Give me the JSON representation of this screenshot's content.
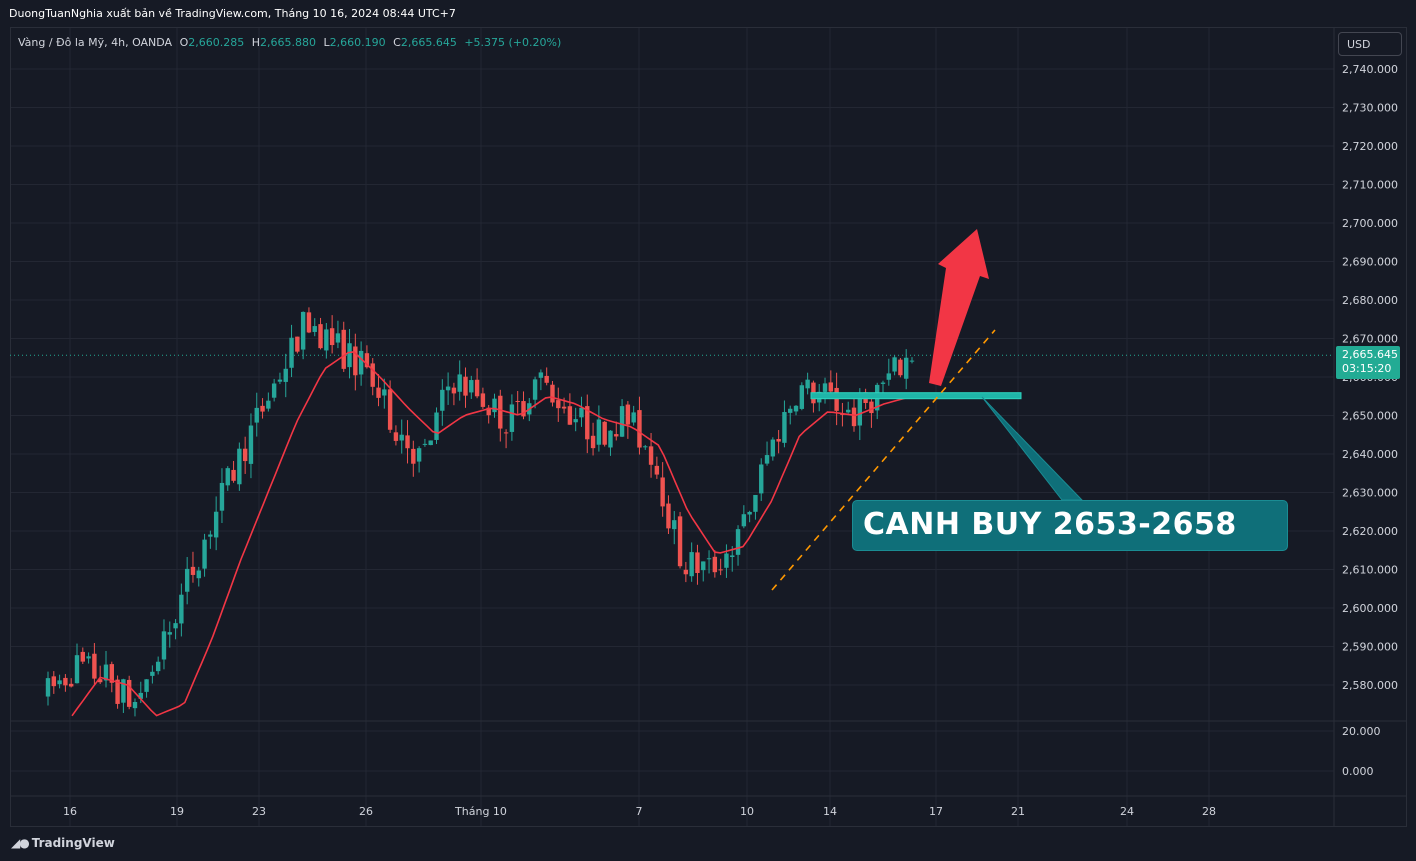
{
  "header": {
    "publish_text": "DuongTuanNghia xuất bản về TradingView.com, Tháng 10 16, 2024 08:44 UTC+7"
  },
  "legend": {
    "symbol": "Vàng / Đô la Mỹ, 4h, OANDA",
    "open_key": "O",
    "open": "2,660.285",
    "high_key": "H",
    "high": "2,665.880",
    "low_key": "L",
    "low": "2,660.190",
    "close_key": "C",
    "close": "2,665.645",
    "change": "+5.375 (+0.20%)"
  },
  "currency_button": "USD",
  "price_badge": {
    "price": "2,665.645",
    "countdown": "03:15:20"
  },
  "annotation": {
    "text": "CANH BUY 2653-2658"
  },
  "footer": {
    "brand": "TradingView",
    "logo_icon": "tradingview-logo-icon"
  },
  "colors": {
    "background": "#161a25",
    "up": "#26a69a",
    "down": "#ef5350",
    "ma": "#f23645",
    "annotation_box": "#0f6f79",
    "trendline": "#ff9800",
    "arrow": "#f23645"
  },
  "chart_data": {
    "type": "candlestick",
    "symbol": "Vàng / Đô la Mỹ, 4h, OANDA",
    "timeframe": "4h",
    "currency": "USD",
    "y_ticks": [
      "2,740.000",
      "2,730.000",
      "2,720.000",
      "2,710.000",
      "2,700.000",
      "2,690.000",
      "2,680.000",
      "2,670.000",
      "2,660.000",
      "2,650.000",
      "2,640.000",
      "2,630.000",
      "2,620.000",
      "2,610.000",
      "2,600.000",
      "2,590.000",
      "2,580.000"
    ],
    "ylim": [
      2570,
      2744
    ],
    "x_ticks": [
      "16",
      "19",
      "23",
      "26",
      "Tháng 10",
      "7",
      "10",
      "14",
      "17",
      "21",
      "24",
      "28"
    ],
    "last_price": 2665.645,
    "oscillator_ticks": [
      "20.000",
      "0.000"
    ],
    "buy_zone": [
      2653,
      2658
    ],
    "price_path_approx": [
      2578,
      2585,
      2582,
      2575,
      2590,
      2610,
      2628,
      2645,
      2660,
      2675,
      2668,
      2662,
      2648,
      2638,
      2660,
      2655,
      2648,
      2660,
      2652,
      2645,
      2650,
      2640,
      2612,
      2610,
      2618,
      2640,
      2657,
      2655,
      2650,
      2658,
      2666
    ],
    "ma_path_approx": [
      2572,
      2582,
      2580,
      2572,
      2575,
      2592,
      2612,
      2630,
      2648,
      2662,
      2667,
      2660,
      2652,
      2645,
      2650,
      2652,
      2650,
      2655,
      2653,
      2649,
      2647,
      2642,
      2625,
      2614,
      2616,
      2628,
      2645,
      2651,
      2650,
      2653,
      2655
    ]
  }
}
